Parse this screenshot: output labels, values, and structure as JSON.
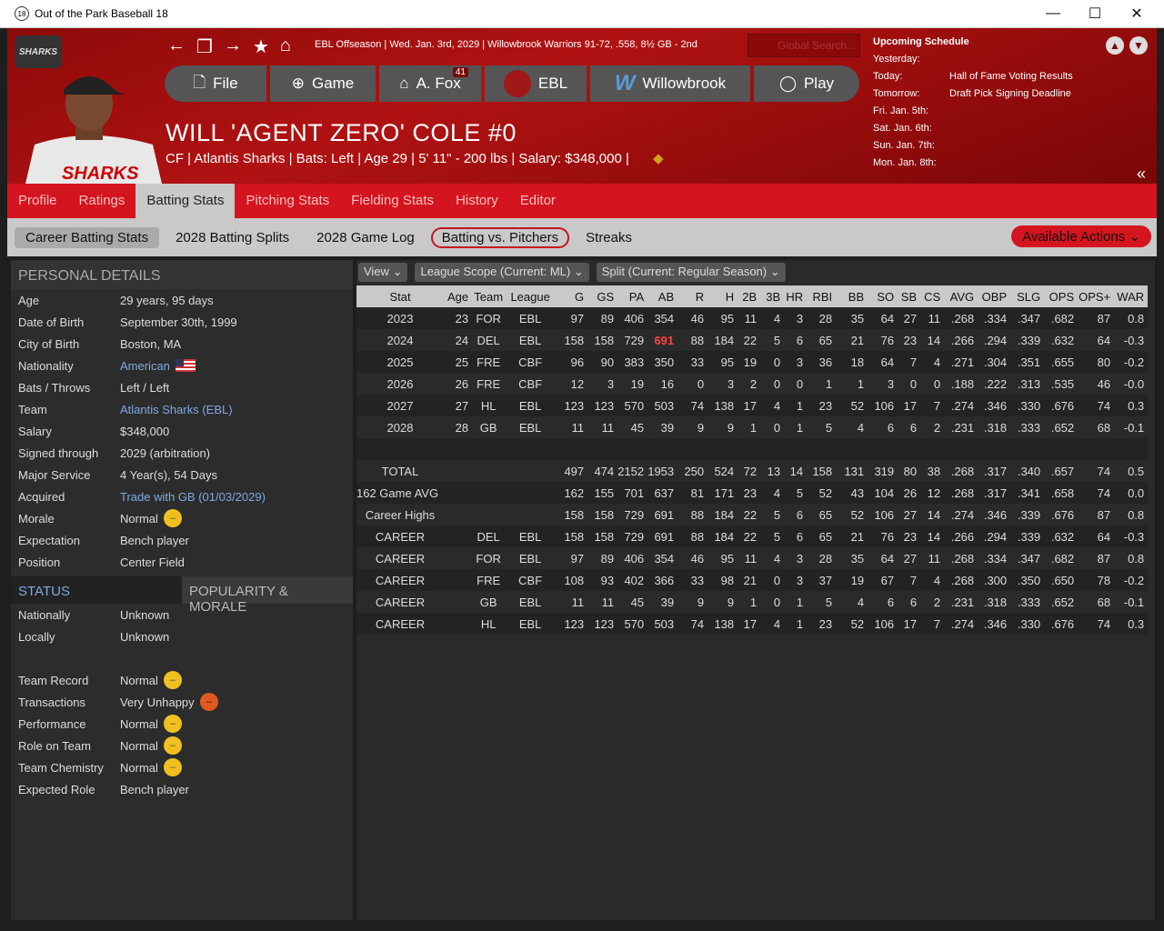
{
  "window": {
    "title": "Out of the Park Baseball 18",
    "app_icon": "18"
  },
  "header": {
    "logo": "SHARKS",
    "info": "EBL Offseason  |  Wed. Jan. 3rd, 2029  |  Willowbrook Warriors  91-72, .558, 8½ GB - 2nd",
    "search_placeholder": "Global Search...",
    "nav": [
      {
        "label": "File",
        "icon": "file-icon"
      },
      {
        "label": "Game",
        "icon": "globe-icon"
      },
      {
        "label": "A. Fox",
        "icon": "home-icon",
        "badge": "41"
      },
      {
        "label": "EBL",
        "icon": "league-logo-icon"
      },
      {
        "label": "Willowbrook",
        "icon": "team-w-logo-icon"
      },
      {
        "label": "Play",
        "icon": "ball-icon"
      }
    ],
    "player_name": "WILL 'AGENT ZERO' COLE  #0",
    "player_info": "CF | Atlantis Sharks  |  Bats: Left  |  Age 29  |  5' 11\" - 200 lbs  |  Salary: $348,000  |"
  },
  "schedule": {
    "title": "Upcoming Schedule",
    "rows": [
      [
        "Yesterday:",
        ""
      ],
      [
        "Today:",
        "Hall of Fame Voting Results"
      ],
      [
        "Tomorrow:",
        "Draft Pick Signing Deadline"
      ],
      [
        "Fri. Jan. 5th:",
        ""
      ],
      [
        "Sat. Jan. 6th:",
        ""
      ],
      [
        "Sun. Jan. 7th:",
        ""
      ],
      [
        "Mon. Jan. 8th:",
        ""
      ]
    ]
  },
  "tabs": [
    "Profile",
    "Ratings",
    "Batting Stats",
    "Pitching Stats",
    "Fielding Stats",
    "History",
    "Editor"
  ],
  "active_tab": "Batting Stats",
  "subtabs": [
    "Career Batting Stats",
    "2028 Batting Splits",
    "2028 Game Log",
    "Batting vs. Pitchers",
    "Streaks"
  ],
  "available_actions": "Available Actions",
  "personal": {
    "title": "PERSONAL DETAILS",
    "rows": [
      [
        "Age",
        "29 years, 95 days"
      ],
      [
        "Date of Birth",
        "September 30th, 1999"
      ],
      [
        "City of Birth",
        "Boston, MA"
      ],
      [
        "Nationality",
        "American"
      ],
      [
        "Bats / Throws",
        "Left / Left"
      ],
      [
        "Team",
        "Atlantis Sharks (EBL)"
      ],
      [
        "Salary",
        "$348,000"
      ],
      [
        "Signed through",
        "2029 (arbitration)"
      ],
      [
        "Major Service",
        "4 Year(s), 54 Days"
      ],
      [
        "Acquired",
        "Trade with GB (01/03/2029)"
      ],
      [
        "Morale",
        "Normal"
      ],
      [
        "Expectation",
        "Bench player"
      ],
      [
        "Position",
        "Center Field"
      ]
    ]
  },
  "status": {
    "tab1": "STATUS",
    "tab2": "POPULARITY & MORALE",
    "rows1": [
      [
        "Nationally",
        "Unknown"
      ],
      [
        "Locally",
        "Unknown"
      ]
    ],
    "rows2": [
      [
        "Team Record",
        "Normal"
      ],
      [
        "Transactions",
        "Very Unhappy"
      ],
      [
        "Performance",
        "Normal"
      ],
      [
        "Role on Team",
        "Normal"
      ],
      [
        "Team Chemistry",
        "Normal"
      ],
      [
        "Expected Role",
        "Bench player"
      ]
    ]
  },
  "filters": [
    "View",
    "League Scope  (Current: ML)",
    "Split  (Current: Regular Season)"
  ],
  "stats": {
    "columns": [
      "Stat",
      "Age",
      "Team",
      "League",
      "G",
      "GS",
      "PA",
      "AB",
      "R",
      "H",
      "2B",
      "3B",
      "HR",
      "RBI",
      "BB",
      "SO",
      "SB",
      "CS",
      "AVG",
      "OBP",
      "SLG",
      "OPS",
      "OPS+",
      "WAR"
    ],
    "rows": [
      [
        "2023",
        "23",
        "FOR",
        "EBL",
        "97",
        "89",
        "406",
        "354",
        "46",
        "95",
        "11",
        "4",
        "3",
        "28",
        "35",
        "64",
        "27",
        "11",
        ".268",
        ".334",
        ".347",
        ".682",
        "87",
        "0.8"
      ],
      [
        "2024",
        "24",
        "DEL",
        "EBL",
        "158",
        "158",
        "729",
        "691",
        "88",
        "184",
        "22",
        "5",
        "6",
        "65",
        "21",
        "76",
        "23",
        "14",
        ".266",
        ".294",
        ".339",
        ".632",
        "64",
        "-0.3"
      ],
      [
        "2025",
        "25",
        "FRE",
        "CBF",
        "96",
        "90",
        "383",
        "350",
        "33",
        "95",
        "19",
        "0",
        "3",
        "36",
        "18",
        "64",
        "7",
        "4",
        ".271",
        ".304",
        ".351",
        ".655",
        "80",
        "-0.2"
      ],
      [
        "2026",
        "26",
        "FRE",
        "CBF",
        "12",
        "3",
        "19",
        "16",
        "0",
        "3",
        "2",
        "0",
        "0",
        "1",
        "1",
        "3",
        "0",
        "0",
        ".188",
        ".222",
        ".313",
        ".535",
        "46",
        "-0.0"
      ],
      [
        "2027",
        "27",
        "HL",
        "EBL",
        "123",
        "123",
        "570",
        "503",
        "74",
        "138",
        "17",
        "4",
        "1",
        "23",
        "52",
        "106",
        "17",
        "7",
        ".274",
        ".346",
        ".330",
        ".676",
        "74",
        "0.3"
      ],
      [
        "2028",
        "28",
        "GB",
        "EBL",
        "11",
        "11",
        "45",
        "39",
        "9",
        "9",
        "1",
        "0",
        "1",
        "5",
        "4",
        "6",
        "6",
        "2",
        ".231",
        ".318",
        ".333",
        ".652",
        "68",
        "-0.1"
      ],
      [
        "",
        "",
        "",
        "",
        "",
        "",
        "",
        "",
        "",
        "",
        "",
        "",
        "",
        "",
        "",
        "",
        "",
        "",
        "",
        "",
        "",
        "",
        "",
        ""
      ],
      [
        "TOTAL",
        "",
        "",
        "",
        "497",
        "474",
        "2152",
        "1953",
        "250",
        "524",
        "72",
        "13",
        "14",
        "158",
        "131",
        "319",
        "80",
        "38",
        ".268",
        ".317",
        ".340",
        ".657",
        "74",
        "0.5"
      ],
      [
        "162 Game AVG",
        "",
        "",
        "",
        "162",
        "155",
        "701",
        "637",
        "81",
        "171",
        "23",
        "4",
        "5",
        "52",
        "43",
        "104",
        "26",
        "12",
        ".268",
        ".317",
        ".341",
        ".658",
        "74",
        "0.0"
      ],
      [
        "Career Highs",
        "",
        "",
        "",
        "158",
        "158",
        "729",
        "691",
        "88",
        "184",
        "22",
        "5",
        "6",
        "65",
        "52",
        "106",
        "27",
        "14",
        ".274",
        ".346",
        ".339",
        ".676",
        "87",
        "0.8"
      ],
      [
        "CAREER",
        "",
        "DEL",
        "EBL",
        "158",
        "158",
        "729",
        "691",
        "88",
        "184",
        "22",
        "5",
        "6",
        "65",
        "21",
        "76",
        "23",
        "14",
        ".266",
        ".294",
        ".339",
        ".632",
        "64",
        "-0.3"
      ],
      [
        "CAREER",
        "",
        "FOR",
        "EBL",
        "97",
        "89",
        "406",
        "354",
        "46",
        "95",
        "11",
        "4",
        "3",
        "28",
        "35",
        "64",
        "27",
        "11",
        ".268",
        ".334",
        ".347",
        ".682",
        "87",
        "0.8"
      ],
      [
        "CAREER",
        "",
        "FRE",
        "CBF",
        "108",
        "93",
        "402",
        "366",
        "33",
        "98",
        "21",
        "0",
        "3",
        "37",
        "19",
        "67",
        "7",
        "4",
        ".268",
        ".300",
        ".350",
        ".650",
        "78",
        "-0.2"
      ],
      [
        "CAREER",
        "",
        "GB",
        "EBL",
        "11",
        "11",
        "45",
        "39",
        "9",
        "9",
        "1",
        "0",
        "1",
        "5",
        "4",
        "6",
        "6",
        "2",
        ".231",
        ".318",
        ".333",
        ".652",
        "68",
        "-0.1"
      ],
      [
        "CAREER",
        "",
        "HL",
        "EBL",
        "123",
        "123",
        "570",
        "503",
        "74",
        "138",
        "17",
        "4",
        "1",
        "23",
        "52",
        "106",
        "17",
        "7",
        ".274",
        ".346",
        ".330",
        ".676",
        "74",
        "0.3"
      ]
    ],
    "highlight_color": "#ff4444"
  },
  "colors": {
    "brand_red": "#d4141e",
    "header_dark_red": "#8e0a0a"
  }
}
